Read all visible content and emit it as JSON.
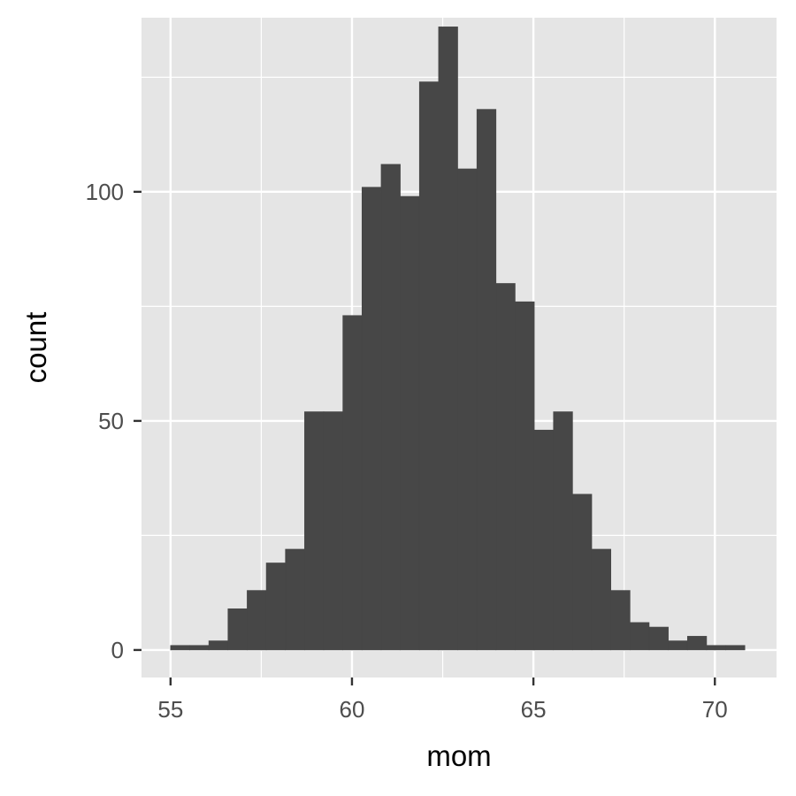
{
  "chart_data": {
    "type": "bar",
    "subtype": "histogram",
    "title": "",
    "xlabel": "mom",
    "ylabel": "count",
    "xlim": [
      54.2,
      71.7
    ],
    "ylim": [
      -6,
      138
    ],
    "x_ticks": [
      55,
      60,
      65,
      70
    ],
    "x_tick_labels": [
      "55",
      "60",
      "65",
      "70"
    ],
    "x_minor_ticks": [
      57.5,
      62.5,
      67.5
    ],
    "y_ticks": [
      0,
      50,
      100
    ],
    "y_tick_labels": [
      "0",
      "50",
      "100"
    ],
    "y_minor_ticks": [
      25,
      75,
      125
    ],
    "bin_width": 0.5276,
    "bin_start": 55.0,
    "values": [
      1,
      1,
      2,
      9,
      13,
      19,
      22,
      52,
      52,
      73,
      101,
      106,
      99,
      124,
      136,
      105,
      118,
      80,
      76,
      48,
      52,
      34,
      22,
      13,
      6,
      5,
      2,
      3,
      1,
      1
    ],
    "grid": true,
    "legend": "none",
    "colors": {
      "bar": "#474747",
      "panel": "#e5e5e5",
      "grid": "#ffffff",
      "tick": "#333333",
      "tick_label": "#4d4d4d",
      "axis_title": "#000000"
    }
  }
}
